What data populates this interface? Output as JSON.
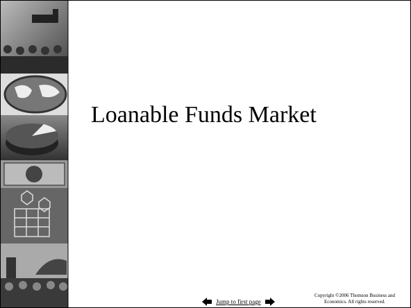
{
  "title": "Loanable Funds Market",
  "nav": {
    "link": "Jump to first page"
  },
  "copyright": {
    "lines": [
      "Copyright ©2006  Thomson Business and",
      "Economics. All rights reserved."
    ]
  }
}
